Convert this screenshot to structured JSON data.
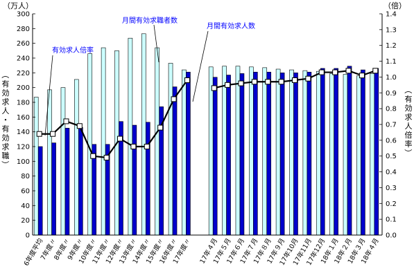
{
  "chart_data": {
    "type": "bar",
    "left_unit": "（万人）",
    "right_unit": "（倍）",
    "ylabel_left": "（有効求人・有効求職）",
    "ylabel_right": "（有効求人倍率）",
    "yleft_lim": [
      0,
      300
    ],
    "yleft_ticks": [
      "0",
      "20",
      "40",
      "60",
      "80",
      "100",
      "120",
      "140",
      "160",
      "180",
      "200",
      "220",
      "240",
      "260",
      "280",
      "300"
    ],
    "yright_lim": [
      0,
      1.4
    ],
    "yright_ticks": [
      "0.0",
      "0.1",
      "0.2",
      "0.3",
      "0.4",
      "0.5",
      "0.6",
      "0.7",
      "0.8",
      "0.9",
      "1.0",
      "1.1",
      "1.2",
      "1.3",
      "1.4"
    ],
    "categories": [
      "6年度平均",
      "7年度〃",
      "8年度〃",
      "9年度〃",
      "10年度〃",
      "11年度〃",
      "12年度〃",
      "13年度〃",
      "14年度〃",
      "15年度〃",
      "16年度〃",
      "17年度〃",
      "",
      "17年４月",
      "17年５月",
      "17年６月",
      "17年７月",
      "17年８月",
      "17年９月",
      "17年10月",
      "17年11月",
      "17年12月",
      "18年１月",
      "18年２月",
      "18年３月",
      "18年４月"
    ],
    "series": [
      {
        "name": "月間有効求職者数",
        "kind": "bar",
        "axis": "left",
        "color": "#ccffff",
        "values": [
          187,
          197,
          200,
          211,
          246,
          254,
          250,
          267,
          273,
          254,
          233,
          224,
          null,
          228,
          229,
          229,
          228,
          227,
          225,
          224,
          223,
          222,
          219,
          218,
          216,
          219
        ]
      },
      {
        "name": "月間有効求人数",
        "kind": "bar",
        "axis": "left",
        "color": "#0000cc",
        "values": [
          120,
          125,
          145,
          146,
          123,
          123,
          154,
          149,
          153,
          174,
          201,
          221,
          null,
          214,
          217,
          219,
          221,
          221,
          220,
          220,
          221,
          226,
          226,
          229,
          224,
          226
        ]
      },
      {
        "name": "有効求人倍率",
        "kind": "line",
        "axis": "right",
        "values": [
          0.64,
          0.64,
          0.72,
          0.69,
          0.5,
          0.49,
          0.61,
          0.56,
          0.56,
          0.68,
          0.86,
          0.98,
          null,
          0.93,
          0.95,
          0.96,
          0.97,
          0.97,
          0.97,
          0.98,
          0.99,
          1.03,
          1.03,
          1.04,
          1.01,
          1.04
        ]
      }
    ],
    "annotations": [
      "有効求人倍率",
      "月間有効求職者数",
      "月間有効求人数"
    ],
    "grid": false,
    "legend": "none"
  }
}
